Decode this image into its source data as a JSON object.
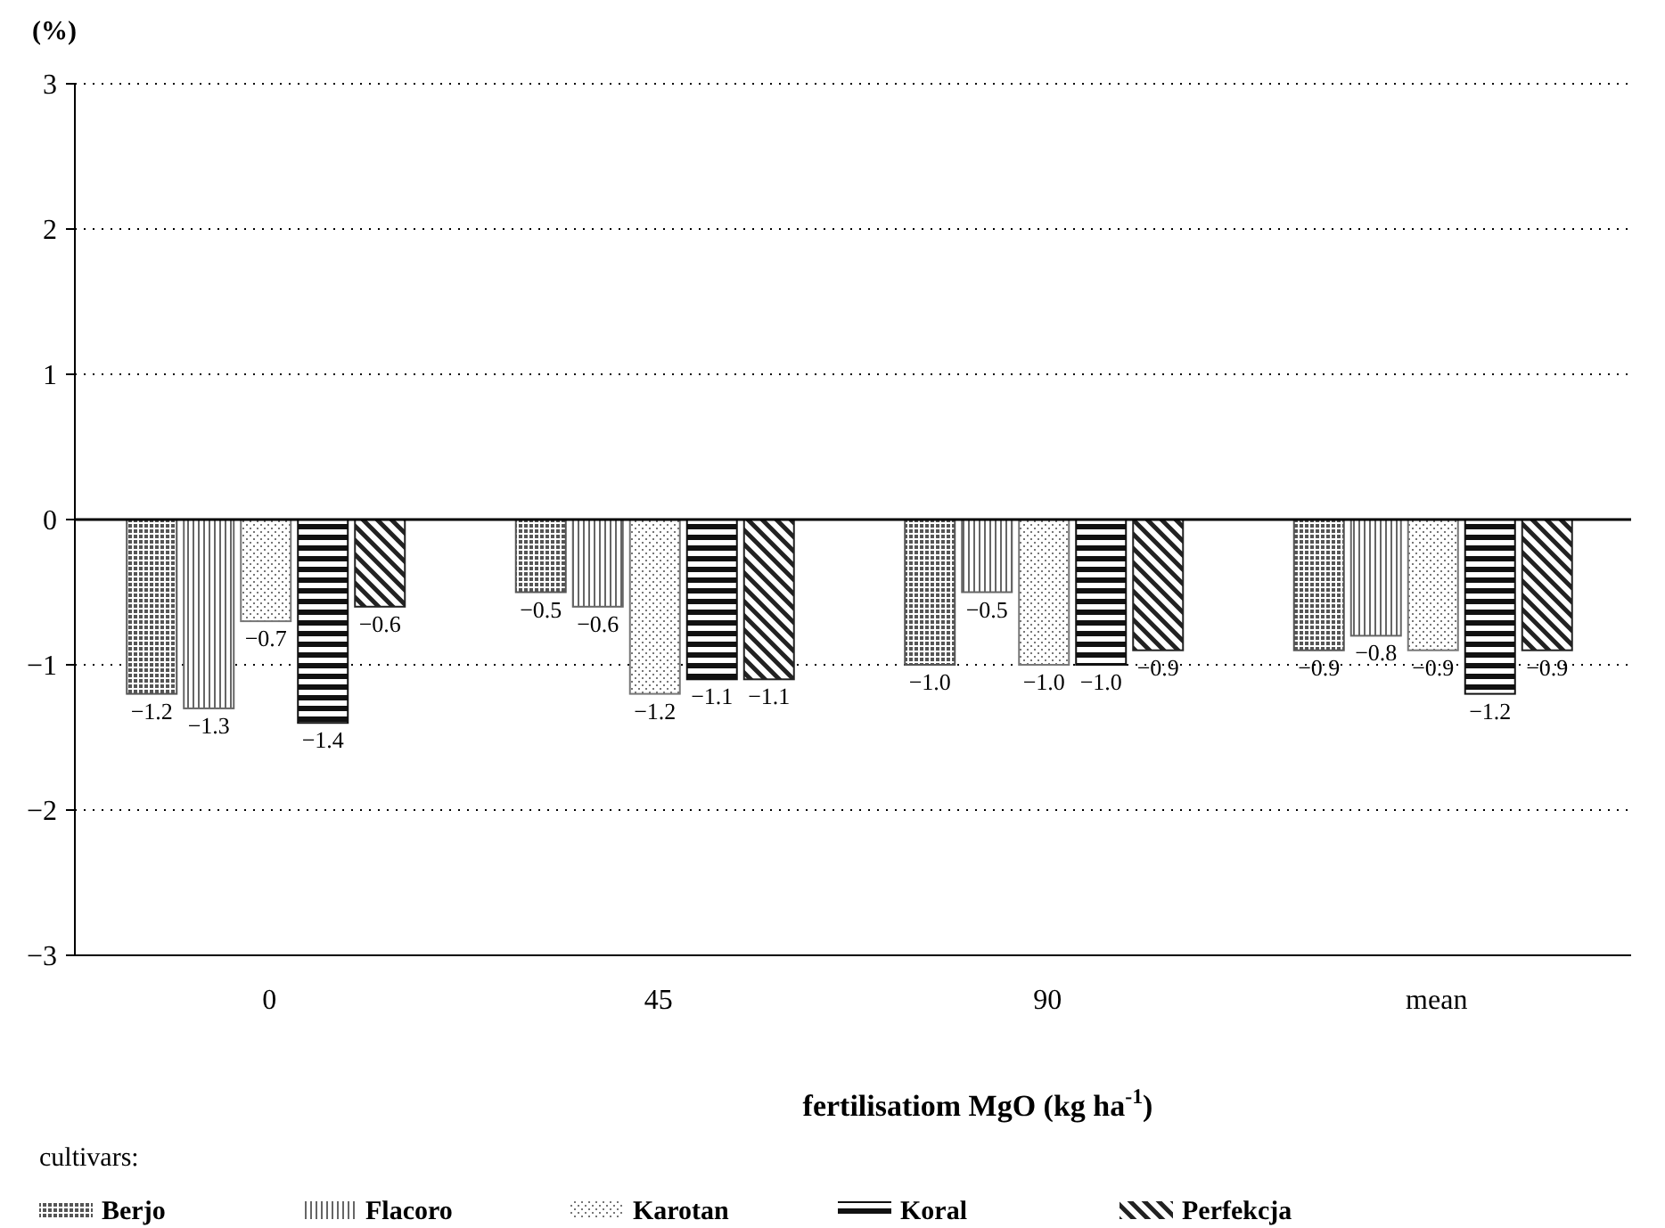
{
  "chart_data": {
    "type": "bar",
    "ylabel": "(%)",
    "xlabel": "fertilisatiom MgO (kg ha$^{-1}$)",
    "legend_title": "cultivars:",
    "legend": "bottom",
    "grid": "y",
    "categories": [
      "0",
      "45",
      "90",
      "mean"
    ],
    "ylim": [
      -3,
      3
    ],
    "yticks": [
      {
        "value": -3,
        "label": "−3"
      },
      {
        "value": -2,
        "label": "−2"
      },
      {
        "value": -1,
        "label": "−1"
      },
      0,
      1,
      2,
      3
    ],
    "ref_lines": [
      {
        "axis": "y",
        "value": 0,
        "color": "#000000",
        "line_style": "solid"
      }
    ],
    "series": [
      {
        "name": "Berjo",
        "color": "#555555",
        "values": [
          -1.2,
          -0.5,
          -1.0,
          -0.9
        ],
        "value_labels": [
          "−1.2",
          "−0.5",
          "−1.0",
          "−0.9"
        ]
      },
      {
        "name": "Flacoro",
        "color": "#666666",
        "values": [
          -1.3,
          -0.6,
          -0.5,
          -0.8
        ],
        "value_labels": [
          "−1.3",
          "−0.6",
          "−0.5",
          "−0.8"
        ]
      },
      {
        "name": "Karotan",
        "color": "#777777",
        "values": [
          -0.7,
          -1.2,
          -1.0,
          -0.9
        ],
        "value_labels": [
          "−0.7",
          "−1.2",
          "−1.0",
          "−0.9"
        ]
      },
      {
        "name": "Koral",
        "color": "#111111",
        "values": [
          -1.4,
          -1.1,
          -1.0,
          -1.2
        ],
        "value_labels": [
          "−1.4",
          "−1.1",
          "−1.0",
          "−1.2"
        ]
      },
      {
        "name": "Perfekcja",
        "color": "#222222",
        "values": [
          -0.6,
          -1.1,
          -0.9,
          -0.9
        ],
        "value_labels": [
          "−0.6",
          "−1.1",
          "−0.9",
          "−0.9"
        ]
      }
    ]
  }
}
